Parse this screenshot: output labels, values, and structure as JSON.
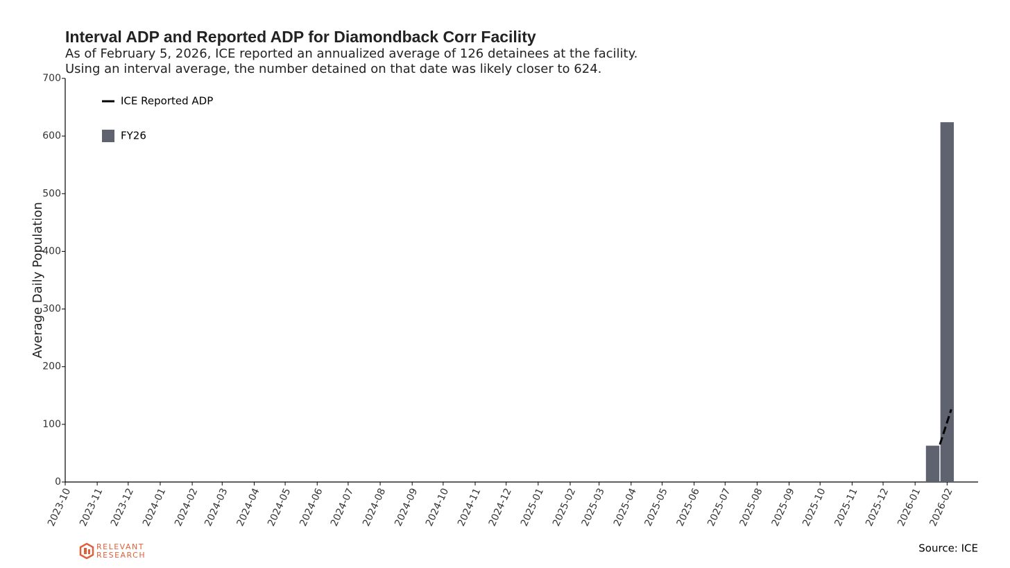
{
  "chart_data": {
    "type": "bar",
    "title": "Interval ADP and Reported ADP for Diamondback Corr Facility",
    "subtitle": [
      "As of February 5, 2026, ICE reported an annualized average of 126 detainees at the facility.",
      "Using an interval average, the number detained on that date was likely closer to 624."
    ],
    "y_label": "Average Daily Population",
    "xlim": [
      "2023-10-01",
      "2026-03-03"
    ],
    "xticks": [
      "2023-10",
      "2023-11",
      "2023-12",
      "2024-01",
      "2024-02",
      "2024-03",
      "2024-04",
      "2024-05",
      "2024-06",
      "2024-07",
      "2024-08",
      "2024-09",
      "2024-10",
      "2024-11",
      "2024-12",
      "2025-01",
      "2025-02",
      "2025-03",
      "2025-04",
      "2025-05",
      "2025-06",
      "2025-07",
      "2025-08",
      "2025-09",
      "2025-10",
      "2025-11",
      "2025-12",
      "2026-01",
      "2026-02"
    ],
    "ylim": [
      0,
      700
    ],
    "yticks": [
      0,
      100,
      200,
      300,
      400,
      500,
      600,
      700
    ],
    "legend": "upper left",
    "series": [
      {
        "name": "ICE Reported ADP",
        "type": "line",
        "color": "#000000",
        "dashed": true,
        "x": [
          "2026-01-25",
          "2026-02-05"
        ],
        "values": [
          65,
          126
        ]
      },
      {
        "name": "FY26",
        "type": "bar",
        "color": "#5f6370",
        "x": [
          "2026-01-18",
          "2026-02-01"
        ],
        "values": [
          63,
          624
        ]
      }
    ],
    "source": "Source: ICE",
    "logo": [
      "RELEVANT",
      "RESEARCH"
    ]
  }
}
